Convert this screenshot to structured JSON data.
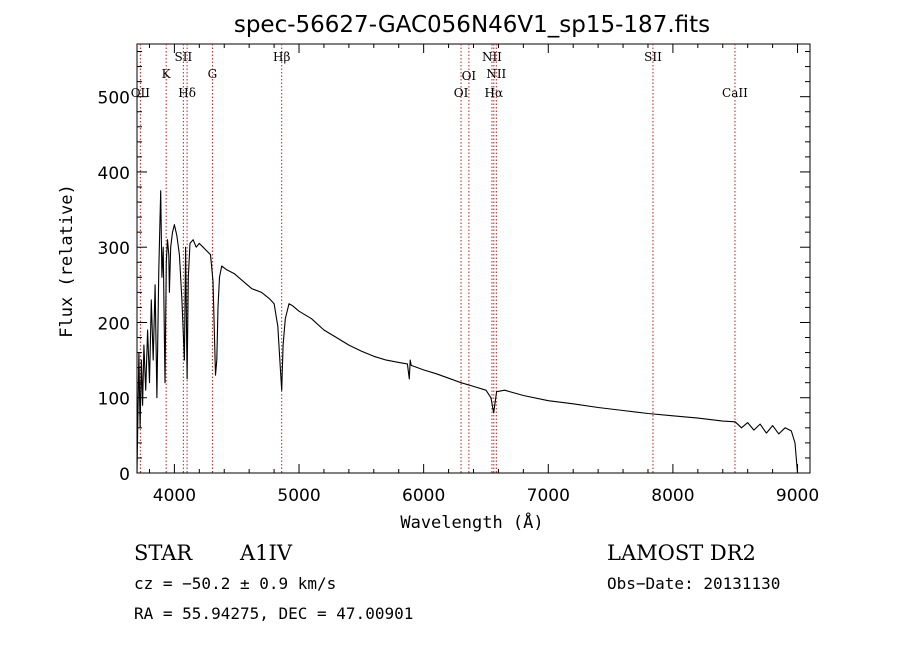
{
  "chart_data": {
    "type": "line",
    "title": "spec-56627-GAC056N46V1_sp15-187.fits",
    "xlabel": "Wavelength (Å)",
    "ylabel": "Flux (relative)",
    "xlim": [
      3700,
      9100
    ],
    "ylim": [
      0,
      570
    ],
    "x_ticks": [
      4000,
      5000,
      6000,
      7000,
      8000,
      9000
    ],
    "y_ticks": [
      0,
      100,
      200,
      300,
      400,
      500
    ],
    "grid": false,
    "line_color": "#000000",
    "marker_color": "#b22222",
    "series": [
      {
        "x": [
          3700,
          3715,
          3725,
          3735,
          3745,
          3755,
          3770,
          3785,
          3800,
          3815,
          3830,
          3845,
          3860,
          3875,
          3890,
          3900,
          3910,
          3925,
          3935,
          3945,
          3955,
          3960,
          3970,
          3985,
          4000,
          4020,
          4040,
          4060,
          4080,
          4090,
          4102,
          4112,
          4125,
          4150,
          4175,
          4200,
          4230,
          4260,
          4290,
          4310,
          4330,
          4340,
          4350,
          4362,
          4380,
          4420,
          4480,
          4550,
          4620,
          4700,
          4760,
          4800,
          4830,
          4850,
          4861,
          4872,
          4890,
          4920,
          4950,
          5000,
          5100,
          5200,
          5300,
          5400,
          5500,
          5600,
          5700,
          5800,
          5870,
          5885,
          5892,
          5900,
          5950,
          6000,
          6100,
          6200,
          6300,
          6400,
          6500,
          6540,
          6562,
          6585,
          6650,
          6800,
          7000,
          7200,
          7400,
          7600,
          7800,
          8000,
          8200,
          8400,
          8500,
          8550,
          8600,
          8650,
          8700,
          8750,
          8800,
          8850,
          8900,
          8950,
          8980,
          9000
        ],
        "values": [
          0,
          160,
          60,
          150,
          90,
          170,
          110,
          190,
          120,
          230,
          150,
          250,
          100,
          270,
          375,
          260,
          300,
          120,
          280,
          310,
          290,
          240,
          300,
          320,
          330,
          315,
          290,
          230,
          150,
          300,
          125,
          260,
          305,
          310,
          300,
          305,
          300,
          295,
          290,
          255,
          130,
          150,
          220,
          260,
          275,
          270,
          265,
          255,
          245,
          240,
          232,
          225,
          195,
          140,
          110,
          170,
          205,
          225,
          222,
          215,
          205,
          190,
          180,
          170,
          162,
          155,
          150,
          147,
          145,
          125,
          150,
          143,
          140,
          137,
          132,
          126,
          120,
          115,
          110,
          100,
          80,
          108,
          110,
          103,
          96,
          92,
          87,
          83,
          79,
          76,
          73,
          69,
          68,
          60,
          67,
          57,
          65,
          53,
          63,
          52,
          60,
          56,
          40,
          0
        ]
      }
    ],
    "line_markers": [
      {
        "label": "OII",
        "x": 3727,
        "row": 0
      },
      {
        "label": "K",
        "x": 3934,
        "row": 2
      },
      {
        "label": "SII",
        "x": 4072,
        "row": 3
      },
      {
        "label": "Hδ",
        "x": 4102,
        "row": 0
      },
      {
        "label": "G",
        "x": 4305,
        "row": 2
      },
      {
        "label": "Hβ",
        "x": 4861,
        "row": 3
      },
      {
        "label": "OI",
        "x": 6300,
        "row": 0
      },
      {
        "label": "OI",
        "x": 6363,
        "row": 1
      },
      {
        "label": "NII",
        "x": 6548,
        "row": 3
      },
      {
        "label": "Hα",
        "x": 6563,
        "row": 0
      },
      {
        "label": "NII",
        "x": 6583,
        "row": 2
      },
      {
        "label": "SII",
        "x": 7840,
        "row": 3
      },
      {
        "label": "CaII",
        "x": 8498,
        "row": 0
      }
    ]
  },
  "info": {
    "class": "STAR",
    "subclass": "A1IV",
    "survey": "LAMOST DR2",
    "cz": "cz = −50.2 ± 0.9 km/s",
    "obs_date": "Obs−Date: 20131130",
    "coords": "RA =  55.94275, DEC =  47.00901"
  }
}
